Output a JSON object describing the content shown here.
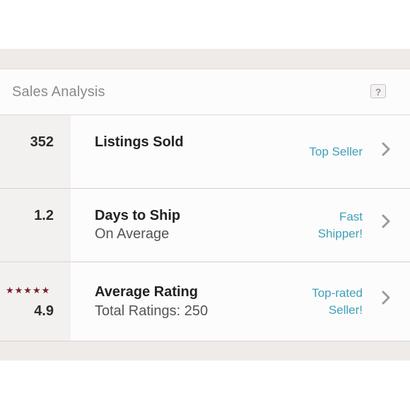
{
  "colors": {
    "accent_link": "#3fa0b8",
    "star": "#7a1e2e",
    "band": "#efebe8",
    "stat_cell": "#f3f1ef"
  },
  "header": {
    "title": "Sales Analysis",
    "help_label": "?"
  },
  "rows": [
    {
      "stat": "352",
      "title": "Listings Sold",
      "subtitle": "",
      "badge_lines": [
        "Top Seller"
      ],
      "icon": "chevron-right-icon"
    },
    {
      "stat": "1.2",
      "title": "Days to Ship",
      "subtitle": "On Average",
      "badge_lines": [
        "Fast",
        "Shipper!"
      ],
      "icon": "chevron-right-icon"
    },
    {
      "stat": "4.9",
      "stars": "★★★★★",
      "star_rating": 5,
      "title": "Average Rating",
      "subtitle": "Total Ratings: 250",
      "badge_lines": [
        "Top-rated",
        "Seller!"
      ],
      "icon": "chevron-right-icon"
    }
  ]
}
